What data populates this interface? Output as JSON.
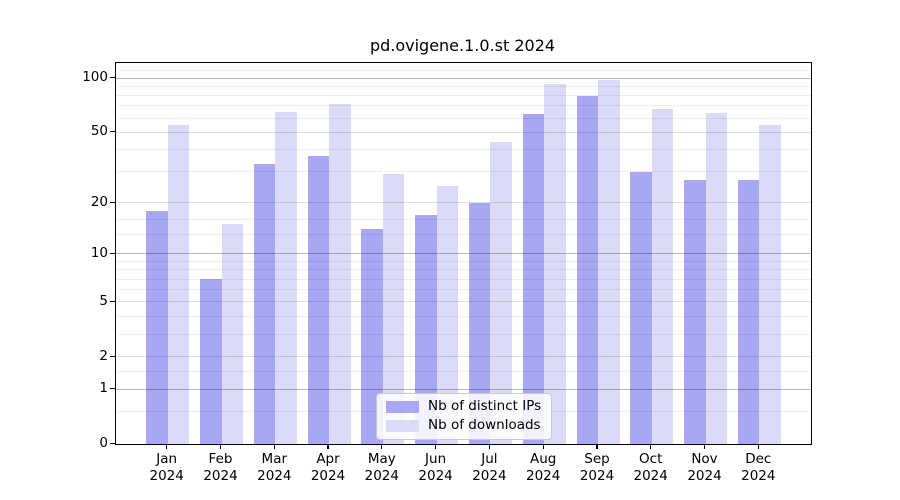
{
  "chart_data": {
    "type": "bar",
    "title": "pd.ovigene.1.0.st 2024",
    "categories": [
      "Jan",
      "Feb",
      "Mar",
      "Apr",
      "May",
      "Jun",
      "Jul",
      "Aug",
      "Sep",
      "Oct",
      "Nov",
      "Dec"
    ],
    "category_year": "2024",
    "series": [
      {
        "name": "Nb of distinct IPs",
        "color": "#a7a7f3",
        "values": [
          18,
          7,
          33,
          37,
          14,
          17,
          20,
          63,
          80,
          30,
          27,
          27
        ]
      },
      {
        "name": "Nb of downloads",
        "color": "#dbdbf8",
        "values": [
          55,
          15,
          65,
          72,
          29,
          25,
          44,
          93,
          98,
          67,
          64,
          55
        ]
      }
    ],
    "xlabel": "",
    "ylabel": "",
    "y_scale": "log1p",
    "y_ticks": [
      0,
      1,
      2,
      5,
      10,
      20,
      50,
      100
    ],
    "y_minor_gridlines": [
      0.5,
      1.5,
      3,
      4,
      6,
      7,
      8,
      9,
      13,
      16,
      30,
      40,
      60,
      70,
      80,
      90,
      110
    ],
    "ylim": [
      0,
      121
    ],
    "grid": "major+minor",
    "legend_position": "lower center",
    "axis_color": "#000000",
    "background": "#ffffff"
  }
}
